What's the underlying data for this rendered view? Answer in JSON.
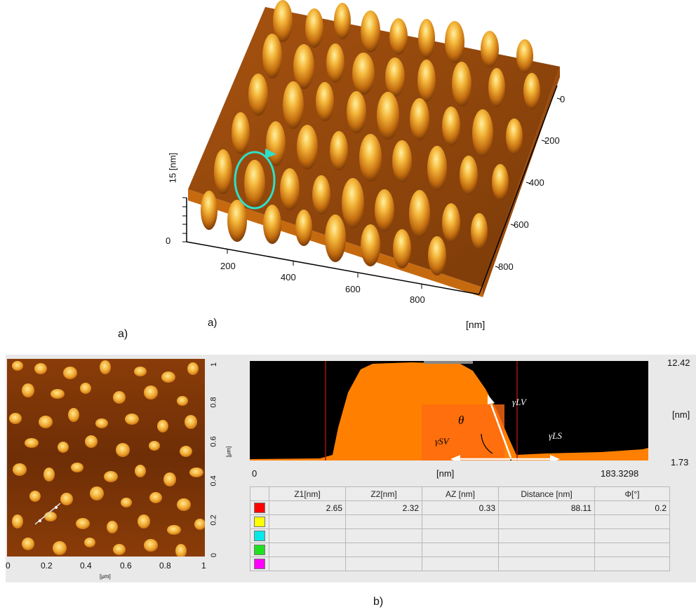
{
  "panel_a": {
    "caption": "a)",
    "inner_caption": "a)",
    "z_axis_label": "15 [nm]",
    "z_tick_zero": "0",
    "x_ticks": [
      "200",
      "400",
      "600",
      "800"
    ],
    "y_ticks": [
      "0",
      "200",
      "400",
      "600",
      "800"
    ],
    "unit": "[nm]",
    "colors": {
      "surface_dark": "#7a3a08",
      "surface_mid": "#c4700f",
      "surface_light": "#f0c048",
      "marker": "#2fe0c8"
    }
  },
  "panel_b": {
    "caption": "b)",
    "map": {
      "x_ticks": [
        "0",
        "0.2",
        "0.4",
        "0.6",
        "0.8",
        "1"
      ],
      "y_ticks": [
        "0",
        "0.2",
        "0.4",
        "0.6",
        "0.8",
        "1"
      ],
      "x_unit": "[μm]",
      "y_unit": "[μm]"
    },
    "profile": {
      "y_max_label": "12.42",
      "y_min_label": "1.73",
      "y_unit": "[nm]",
      "x_min_label": "0",
      "x_max_label": "183.3298",
      "x_unit": "[nm]",
      "theta_label": "θ",
      "gamma_lv": "γLV",
      "gamma_sv": "γSV",
      "gamma_ls": "γLS",
      "colors": {
        "background": "#000000",
        "fill": "#ff8000",
        "cursor": "#a01010",
        "arrow": "#ffffff"
      }
    },
    "table": {
      "headers": [
        "",
        "Z1[nm]",
        "Z2[nm]",
        "AZ [nm]",
        "Distance [nm]",
        "Φ[°]"
      ],
      "rows": [
        {
          "color": "#ff0000",
          "cells": [
            "2.65",
            "2.32",
            "0.33",
            "88.11",
            "0.2"
          ]
        },
        {
          "color": "#ffff00",
          "cells": [
            "",
            "",
            "",
            "",
            ""
          ]
        },
        {
          "color": "#00e8e8",
          "cells": [
            "",
            "",
            "",
            "",
            ""
          ]
        },
        {
          "color": "#20e020",
          "cells": [
            "",
            "",
            "",
            "",
            ""
          ]
        },
        {
          "color": "#ff00ff",
          "cells": [
            "",
            "",
            "",
            "",
            ""
          ]
        }
      ]
    }
  }
}
